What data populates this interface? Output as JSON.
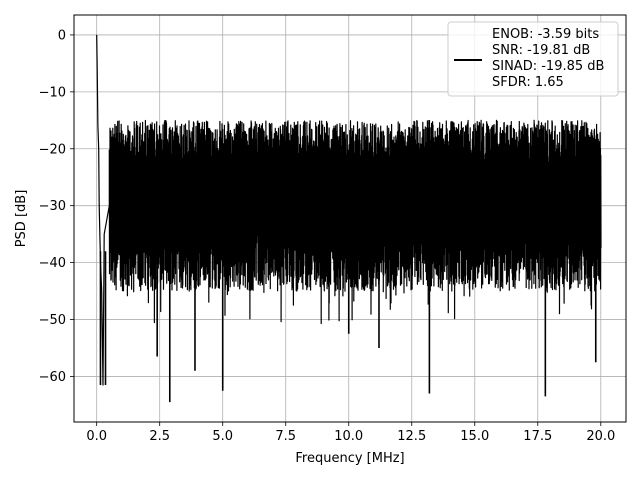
{
  "chart_data": {
    "type": "line",
    "xlabel": "Frequency [MHz]",
    "ylabel": "PSD [dB]",
    "xlim": [
      -0.9,
      21.0
    ],
    "ylim": [
      -68,
      3.5
    ],
    "xticks": [
      0.0,
      2.5,
      5.0,
      7.5,
      10.0,
      12.5,
      15.0,
      17.5,
      20.0
    ],
    "xtick_labels": [
      "0.0",
      "2.5",
      "5.0",
      "7.5",
      "10.0",
      "12.5",
      "15.0",
      "17.5",
      "20.0"
    ],
    "yticks": [
      0,
      -10,
      -20,
      -30,
      -40,
      -50,
      -60
    ],
    "ytick_labels": [
      "0",
      "−10",
      "−20",
      "−30",
      "−40",
      "−50",
      "−60"
    ],
    "grid": true,
    "legend_position": "top-right",
    "series": [
      {
        "color": "#000000",
        "x": [
          0.0,
          0.02,
          0.05,
          0.08,
          0.1,
          0.15,
          0.2,
          0.25,
          0.3,
          0.5,
          1.0,
          1.5,
          2.0,
          2.5,
          3.0,
          4.0,
          5.0,
          6.0,
          7.0,
          8.0,
          9.0,
          10.0,
          11.0,
          12.0,
          13.0,
          14.0,
          15.0,
          16.0,
          17.0,
          18.0,
          19.0,
          20.0
        ],
        "y": [
          0.0,
          -6,
          -16,
          -20,
          -30,
          -40,
          -45,
          -61.5,
          -35,
          -30,
          -28,
          -29,
          -30,
          -30,
          -29,
          -29,
          -29,
          -28,
          -28,
          -28,
          -28,
          -28,
          -28,
          -28,
          -28,
          -28,
          -28,
          -28,
          -28,
          -28,
          -28,
          -28
        ],
        "noise": {
          "upper_envelope_db": -15,
          "typical_min_db": -45,
          "deep_dips": [
            {
              "x": 0.15,
              "y": -61.5
            },
            {
              "x": 0.35,
              "y": -61.5
            },
            {
              "x": 2.4,
              "y": -56.5
            },
            {
              "x": 2.9,
              "y": -64.5
            },
            {
              "x": 3.9,
              "y": -59
            },
            {
              "x": 5.0,
              "y": -62.5
            },
            {
              "x": 13.2,
              "y": -63
            },
            {
              "x": 17.8,
              "y": -63.5
            },
            {
              "x": 19.8,
              "y": -57.5
            },
            {
              "x": 10.0,
              "y": -52.5
            },
            {
              "x": 11.2,
              "y": -55
            }
          ]
        }
      }
    ],
    "legend": {
      "lines": [
        "ENOB: -3.59 bits",
        "SNR: -19.81 dB",
        "SINAD: -19.85 dB",
        "SFDR: 1.65"
      ]
    }
  }
}
